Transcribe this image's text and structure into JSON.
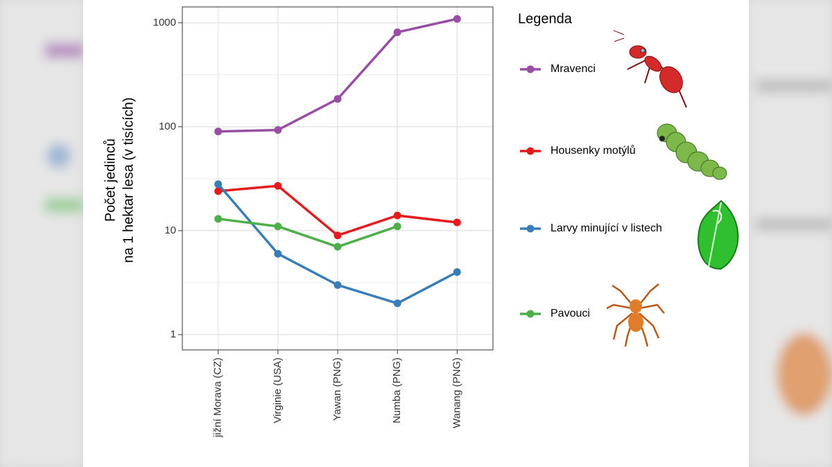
{
  "chart_data": {
    "type": "line",
    "ylabel": [
      "Počet jedinců",
      "na 1 hektar lesa (v tisících)"
    ],
    "categories": [
      "jižní Morava (CZ)",
      "Virginie (USA)",
      "Yawan (PNG)",
      "Numba (PNG)",
      "Wanang (PNG)"
    ],
    "series": [
      {
        "name": "Mravenci",
        "color": "#984ea3",
        "values": [
          90,
          93,
          185,
          810,
          1090
        ]
      },
      {
        "name": "Housenky motýlů",
        "color": "#e41a1c",
        "values": [
          24,
          27,
          9,
          14,
          12
        ]
      },
      {
        "name": "Larvy minující v listech",
        "color": "#377eb8",
        "values": [
          28,
          6,
          3,
          2,
          4
        ]
      },
      {
        "name": "Pavouci",
        "color": "#4daf4a",
        "values": [
          13,
          11,
          7,
          11,
          null
        ]
      }
    ],
    "ylim": [
      0.713,
      1420
    ],
    "yticks": [
      1,
      10,
      100,
      1000
    ],
    "log_y": true,
    "grid": true,
    "legend_title": "Legenda",
    "legend": "right"
  }
}
